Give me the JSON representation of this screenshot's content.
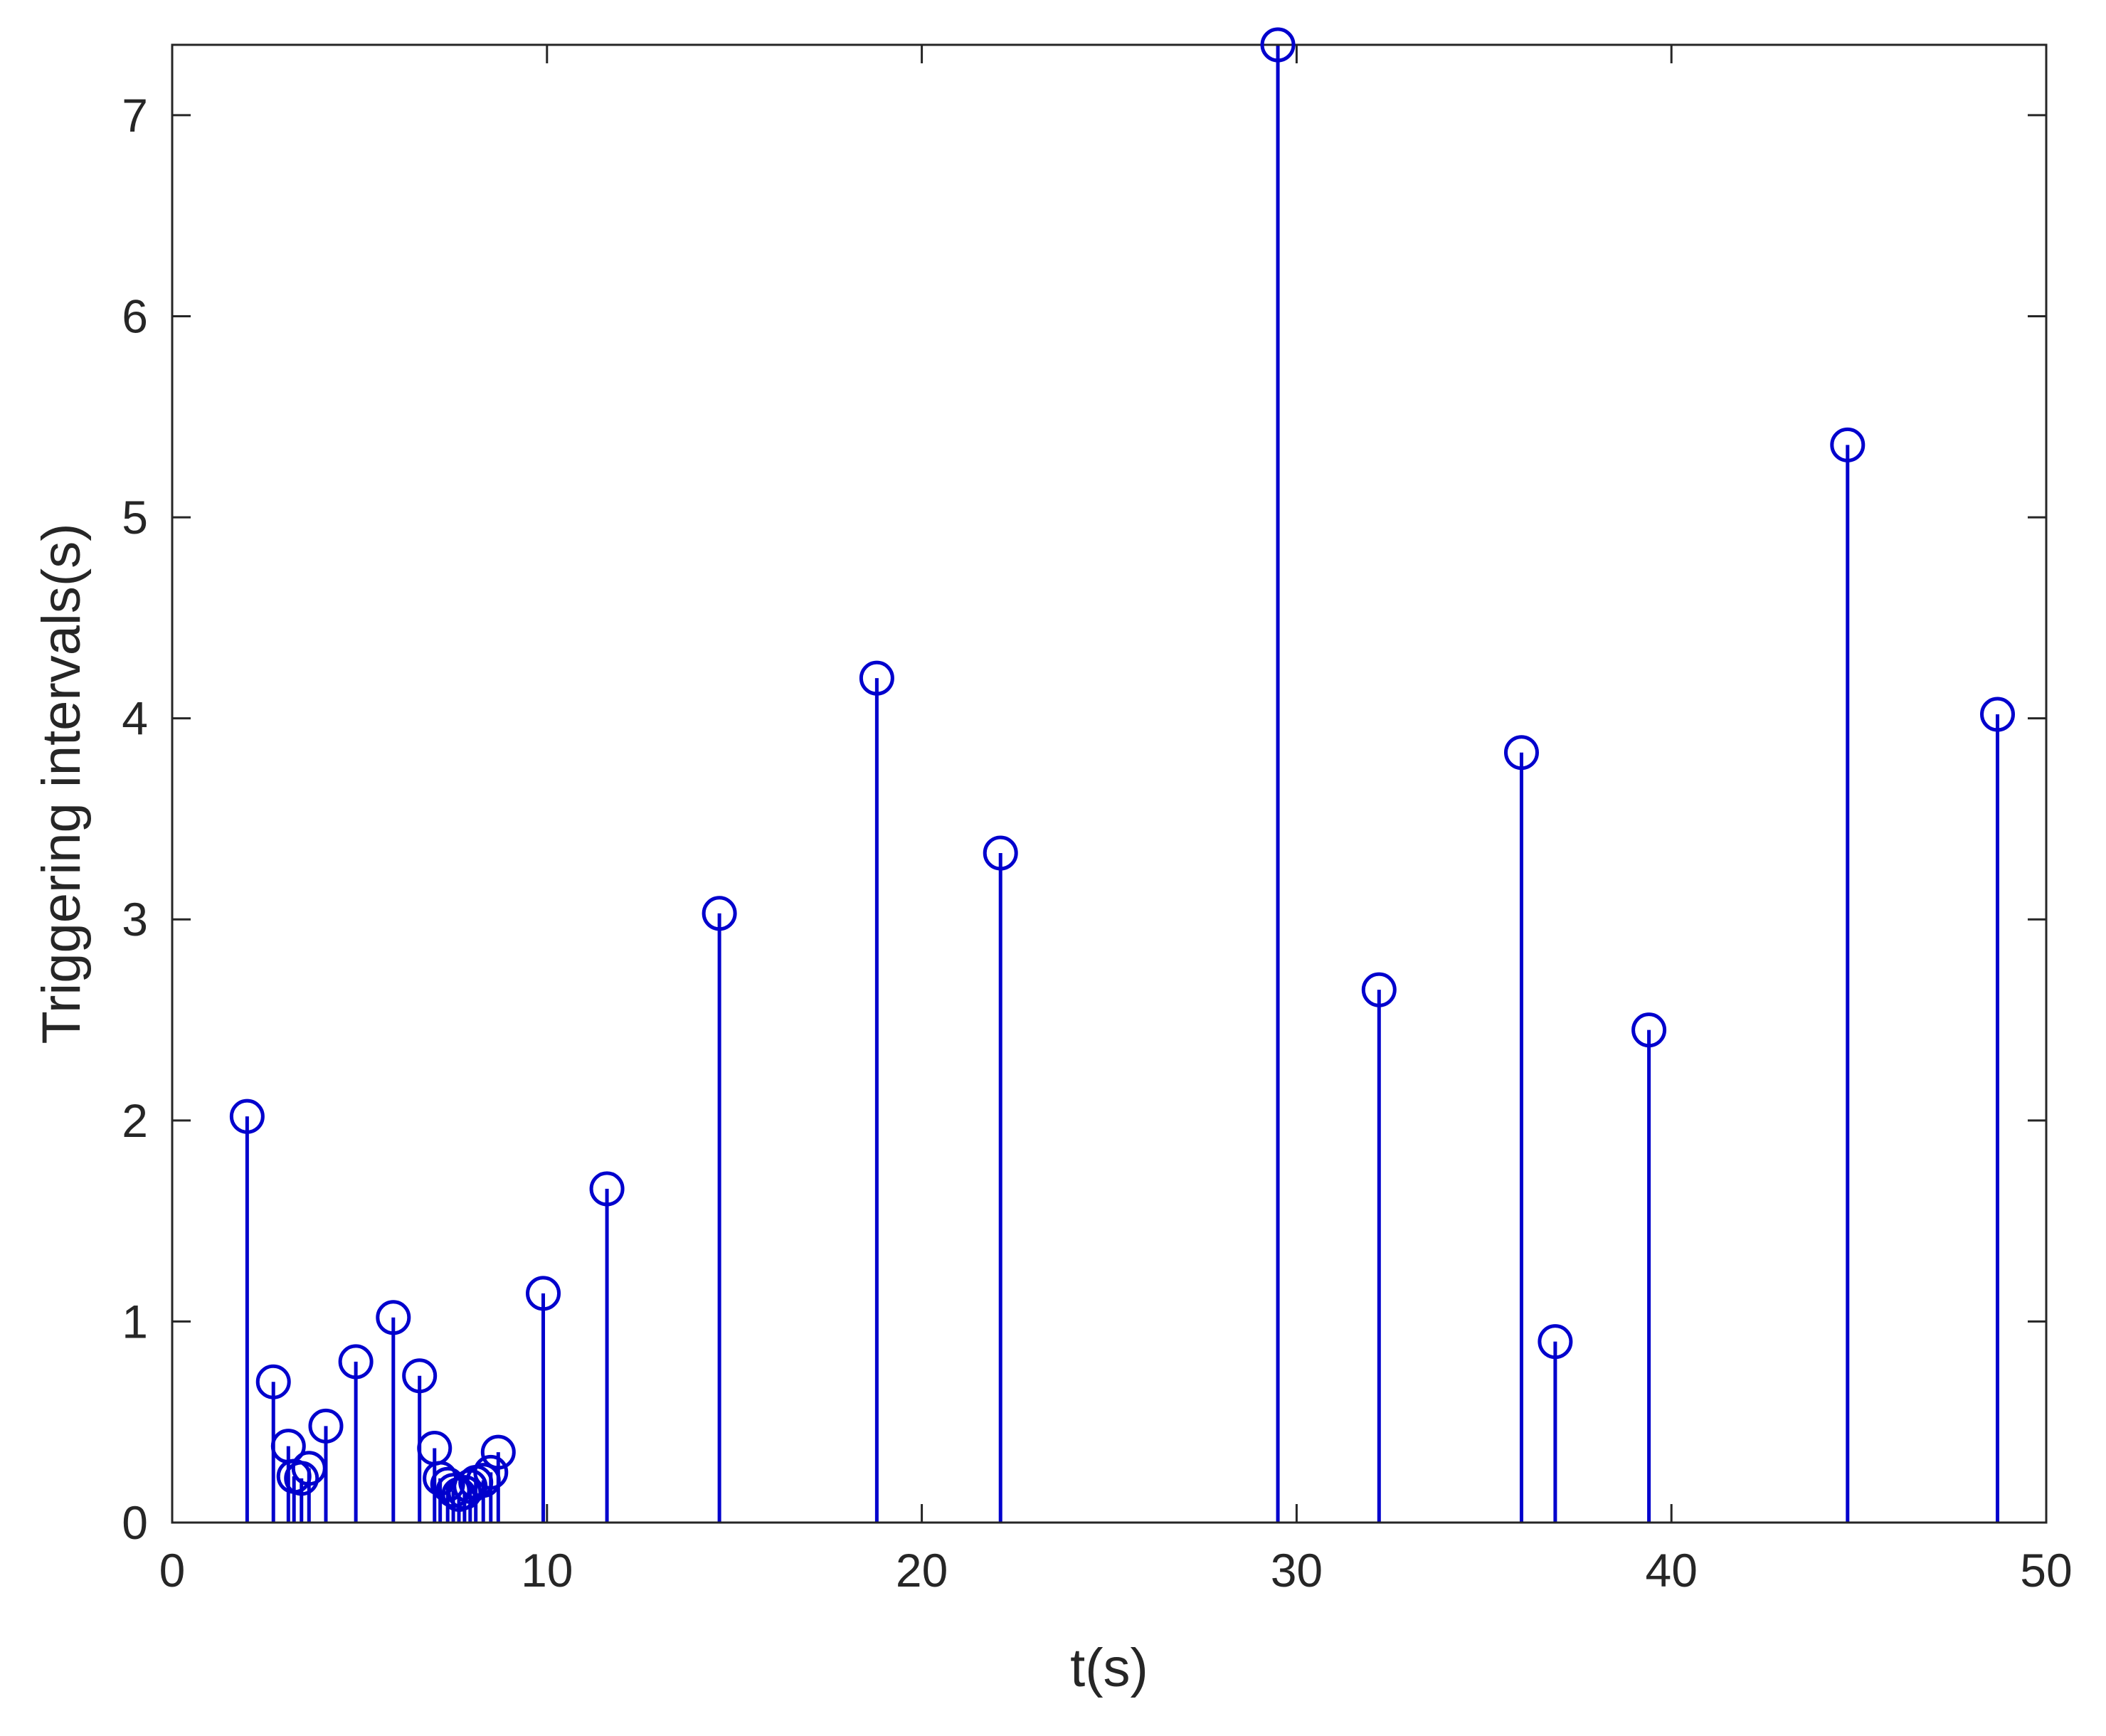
{
  "chart_data": {
    "type": "stem",
    "title": "",
    "xlabel": "t(s)",
    "ylabel": "Triggering intervals(s)",
    "xlim": [
      0,
      50
    ],
    "ylim": [
      0,
      7.35
    ],
    "xticks": [
      0,
      10,
      20,
      30,
      40,
      50
    ],
    "yticks": [
      0,
      1,
      2,
      3,
      4,
      5,
      6,
      7
    ],
    "grid": false,
    "legend": "none",
    "marker": "circle-open",
    "color": "#0000CD",
    "axis_color": "#262626",
    "points": [
      {
        "x": 2.0,
        "y": 2.02
      },
      {
        "x": 2.7,
        "y": 0.7
      },
      {
        "x": 3.1,
        "y": 0.38
      },
      {
        "x": 3.25,
        "y": 0.23
      },
      {
        "x": 3.45,
        "y": 0.22
      },
      {
        "x": 3.65,
        "y": 0.27
      },
      {
        "x": 4.1,
        "y": 0.48
      },
      {
        "x": 4.9,
        "y": 0.8
      },
      {
        "x": 5.9,
        "y": 1.02
      },
      {
        "x": 6.6,
        "y": 0.73
      },
      {
        "x": 7.0,
        "y": 0.37
      },
      {
        "x": 7.15,
        "y": 0.22
      },
      {
        "x": 7.35,
        "y": 0.19
      },
      {
        "x": 7.5,
        "y": 0.16
      },
      {
        "x": 7.65,
        "y": 0.14
      },
      {
        "x": 7.8,
        "y": 0.15
      },
      {
        "x": 7.95,
        "y": 0.18
      },
      {
        "x": 8.1,
        "y": 0.2
      },
      {
        "x": 8.3,
        "y": 0.21
      },
      {
        "x": 8.5,
        "y": 0.25
      },
      {
        "x": 8.7,
        "y": 0.35
      },
      {
        "x": 9.9,
        "y": 1.14
      },
      {
        "x": 11.6,
        "y": 1.66
      },
      {
        "x": 14.6,
        "y": 3.03
      },
      {
        "x": 18.8,
        "y": 4.2
      },
      {
        "x": 22.1,
        "y": 3.33
      },
      {
        "x": 29.5,
        "y": 7.35
      },
      {
        "x": 32.2,
        "y": 2.65
      },
      {
        "x": 36.0,
        "y": 3.83
      },
      {
        "x": 36.9,
        "y": 0.9
      },
      {
        "x": 39.4,
        "y": 2.45
      },
      {
        "x": 44.7,
        "y": 5.36
      },
      {
        "x": 48.7,
        "y": 4.02
      }
    ]
  }
}
